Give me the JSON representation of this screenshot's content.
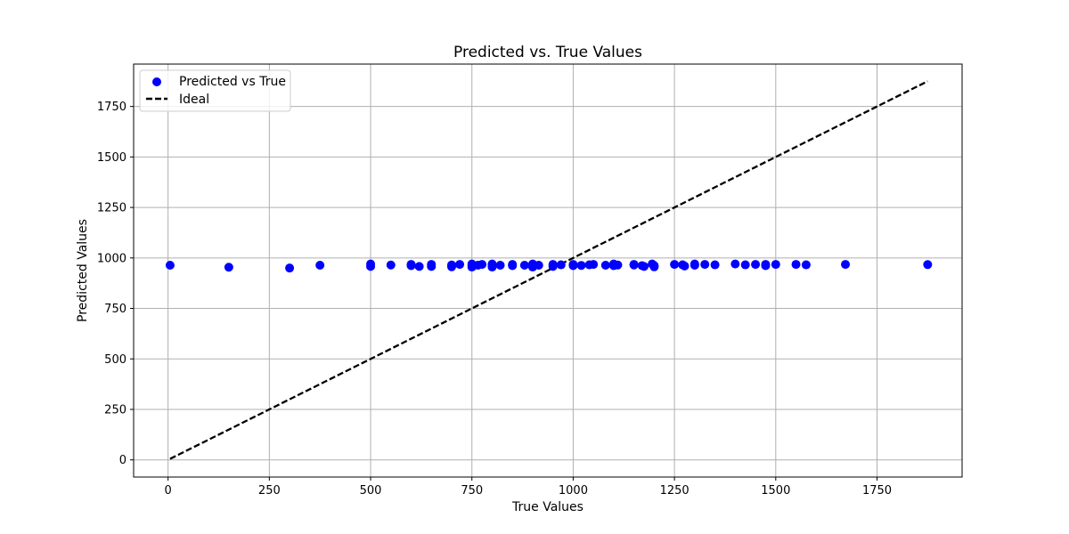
{
  "chart_data": {
    "type": "scatter",
    "title": "Predicted vs. True Values",
    "xlabel": "True Values",
    "ylabel": "Predicted Values",
    "xlim": [
      -85,
      1960
    ],
    "ylim": [
      -85,
      1960
    ],
    "xticks": [
      0,
      250,
      500,
      750,
      1000,
      1250,
      1500,
      1750
    ],
    "yticks": [
      0,
      250,
      500,
      750,
      1000,
      1250,
      1500,
      1750
    ],
    "grid": true,
    "legend_position": "top-left",
    "series": [
      {
        "name": "Predicted vs True",
        "kind": "scatter",
        "color": "#0000ff",
        "points": [
          [
            5,
            964
          ],
          [
            150,
            954
          ],
          [
            300,
            950
          ],
          [
            375,
            964
          ],
          [
            500,
            970
          ],
          [
            500,
            958
          ],
          [
            550,
            965
          ],
          [
            600,
            968
          ],
          [
            600,
            962
          ],
          [
            620,
            958
          ],
          [
            650,
            968
          ],
          [
            650,
            958
          ],
          [
            700,
            965
          ],
          [
            700,
            956
          ],
          [
            720,
            968
          ],
          [
            750,
            970
          ],
          [
            750,
            962
          ],
          [
            750,
            955
          ],
          [
            765,
            964
          ],
          [
            775,
            968
          ],
          [
            800,
            970
          ],
          [
            800,
            962
          ],
          [
            800,
            955
          ],
          [
            820,
            964
          ],
          [
            850,
            968
          ],
          [
            850,
            962
          ],
          [
            880,
            964
          ],
          [
            900,
            970
          ],
          [
            900,
            962
          ],
          [
            900,
            955
          ],
          [
            915,
            964
          ],
          [
            950,
            968
          ],
          [
            950,
            958
          ],
          [
            970,
            966
          ],
          [
            1000,
            968
          ],
          [
            1000,
            962
          ],
          [
            1020,
            963
          ],
          [
            1040,
            966
          ],
          [
            1050,
            968
          ],
          [
            1080,
            964
          ],
          [
            1100,
            970
          ],
          [
            1100,
            962
          ],
          [
            1110,
            965
          ],
          [
            1150,
            968
          ],
          [
            1150,
            965
          ],
          [
            1170,
            962
          ],
          [
            1175,
            958
          ],
          [
            1195,
            970
          ],
          [
            1200,
            962
          ],
          [
            1200,
            956
          ],
          [
            1250,
            968
          ],
          [
            1270,
            966
          ],
          [
            1275,
            960
          ],
          [
            1300,
            970
          ],
          [
            1300,
            964
          ],
          [
            1325,
            968
          ],
          [
            1350,
            966
          ],
          [
            1400,
            970
          ],
          [
            1425,
            966
          ],
          [
            1450,
            968
          ],
          [
            1475,
            968
          ],
          [
            1475,
            962
          ],
          [
            1500,
            968
          ],
          [
            1550,
            968
          ],
          [
            1575,
            966
          ],
          [
            1672,
            968
          ],
          [
            1875,
            967
          ]
        ]
      },
      {
        "name": "Ideal",
        "kind": "line",
        "color": "#000000",
        "dash": "dashed",
        "points": [
          [
            5,
            5
          ],
          [
            1875,
            1875
          ]
        ]
      }
    ]
  }
}
